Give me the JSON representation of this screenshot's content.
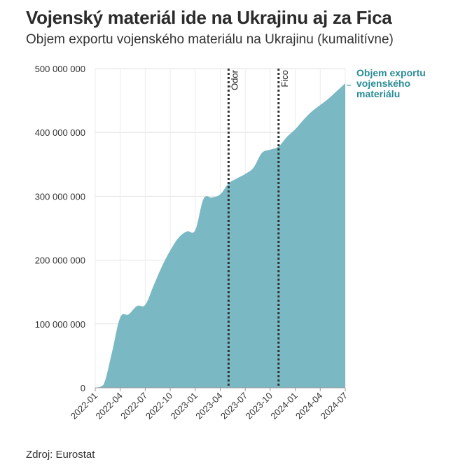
{
  "header": {
    "title": "Vojenský materiál ide na Ukrajinu aj za Fica",
    "subtitle": "Objem exportu vojenského materiálu na Ukrajinu (kumalitívne)"
  },
  "footer": {
    "source": "Zdroj: Eurostat"
  },
  "colors": {
    "area": "#7ab8c3",
    "legend": "#2a8c96",
    "grid": "#e2e2e2",
    "event_line": "#333333"
  },
  "chart_data": {
    "type": "area",
    "title": "Vojenský materiál ide na Ukrajinu aj za Fica",
    "subtitle": "Objem exportu vojenského materiálu na Ukrajinu (kumalitívne)",
    "xlabel": "",
    "ylabel": "",
    "ylim": [
      0,
      500000000
    ],
    "yticks": [
      0,
      100000000,
      200000000,
      300000000,
      400000000,
      500000000
    ],
    "ytick_labels": [
      "0",
      "100 000 000",
      "200 000 000",
      "300 000 000",
      "400 000 000",
      "500 000 000"
    ],
    "xticks": [
      "2022-01",
      "2022-04",
      "2022-07",
      "2022-10",
      "2023-01",
      "2023-04",
      "2023-07",
      "2023-10",
      "2024-01",
      "2024-04",
      "2024-07"
    ],
    "grid": true,
    "series": [
      {
        "name": "Objem exportu vojenského materiálu",
        "x": [
          "2022-01",
          "2022-02",
          "2022-03",
          "2022-04",
          "2022-05",
          "2022-06",
          "2022-07",
          "2022-08",
          "2022-09",
          "2022-10",
          "2022-11",
          "2022-12",
          "2023-01",
          "2023-02",
          "2023-03",
          "2023-04",
          "2023-05",
          "2023-06",
          "2023-07",
          "2023-08",
          "2023-09",
          "2023-10",
          "2023-11",
          "2023-12",
          "2024-01",
          "2024-02",
          "2024-03",
          "2024-04",
          "2024-05",
          "2024-06",
          "2024-07"
        ],
        "values": [
          0,
          5000000,
          55000000,
          110000000,
          115000000,
          128000000,
          130000000,
          160000000,
          190000000,
          215000000,
          235000000,
          245000000,
          247000000,
          296000000,
          298000000,
          303000000,
          320000000,
          328000000,
          335000000,
          345000000,
          368000000,
          373000000,
          378000000,
          393000000,
          405000000,
          420000000,
          433000000,
          443000000,
          453000000,
          465000000,
          477000000
        ]
      }
    ],
    "legend": {
      "position": "right-end",
      "label_lines": [
        "Objem exportu",
        "vojenského",
        "materiálu"
      ]
    },
    "events": [
      {
        "label": "Ódor",
        "x": "2023-05"
      },
      {
        "label": "Fico",
        "x": "2023-11"
      }
    ]
  }
}
